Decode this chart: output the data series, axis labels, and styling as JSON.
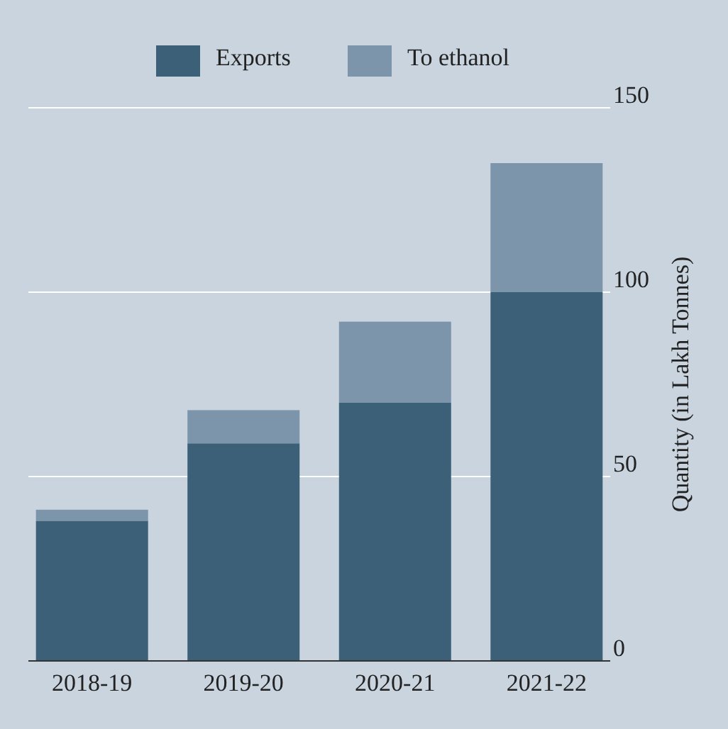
{
  "chart_data": {
    "type": "bar",
    "stacked": true,
    "categories": [
      "2018-19",
      "2019-20",
      "2020-21",
      "2021-22"
    ],
    "series": [
      {
        "name": "Exports",
        "color": "#3d6079",
        "values": [
          38,
          59,
          70,
          100
        ]
      },
      {
        "name": "To ethanol",
        "color": "#7d95ab",
        "values": [
          3,
          9,
          22,
          35
        ]
      }
    ],
    "ylabel": "Quantity (in Lakh Tonnes)",
    "ylim": [
      0,
      150
    ],
    "yticks": [
      0,
      50,
      100,
      150
    ],
    "grid": "y",
    "legend": "top"
  }
}
